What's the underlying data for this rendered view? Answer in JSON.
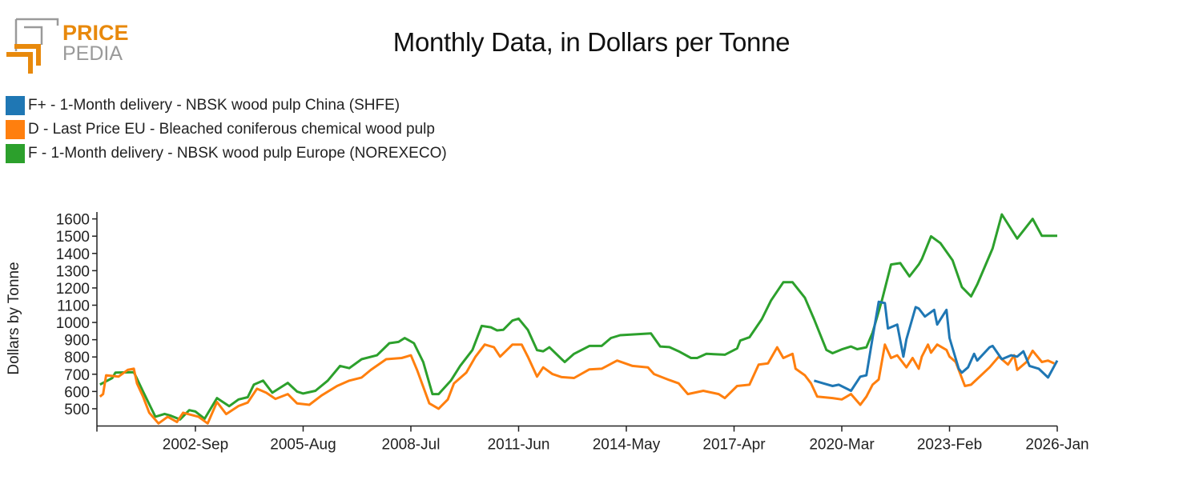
{
  "logo": {
    "text_top": "PRICE",
    "text_bottom": "PEDIA",
    "brand_color": "#e8890c",
    "gray_color": "#9a9a9a"
  },
  "chart_data": {
    "type": "line",
    "title": "Monthly Data, in Dollars per Tonne",
    "xlabel": "",
    "ylabel": "Dollars by Tonne",
    "xlim": [
      "2000-01",
      "2026-01"
    ],
    "ylim": [
      400,
      1640
    ],
    "x_ticks": [
      "2002-Sep",
      "2005-Aug",
      "2008-Jul",
      "2011-Jun",
      "2014-May",
      "2017-Apr",
      "2020-Mar",
      "2023-Feb",
      "2026-Jan"
    ],
    "y_ticks": [
      500,
      600,
      700,
      800,
      900,
      1000,
      1100,
      1200,
      1300,
      1400,
      1500,
      1600
    ],
    "grid": false,
    "legend_position": "top-left",
    "series": [
      {
        "name": "F+ - 1-Month delivery - NBSK wood pulp China (SHFE)",
        "color": "#1f77b4",
        "points": [
          [
            "2019-06",
            663
          ],
          [
            "2019-09",
            647
          ],
          [
            "2019-12",
            632
          ],
          [
            "2020-02",
            639
          ],
          [
            "2020-06",
            604
          ],
          [
            "2020-09",
            686
          ],
          [
            "2020-11",
            694
          ],
          [
            "2021-01",
            910
          ],
          [
            "2021-03",
            1120
          ],
          [
            "2021-05",
            1112
          ],
          [
            "2021-06",
            965
          ],
          [
            "2021-09",
            988
          ],
          [
            "2021-11",
            802
          ],
          [
            "2021-12",
            903
          ],
          [
            "2022-03",
            1089
          ],
          [
            "2022-04",
            1081
          ],
          [
            "2022-06",
            1034
          ],
          [
            "2022-09",
            1073
          ],
          [
            "2022-10",
            988
          ],
          [
            "2023-01",
            1073
          ],
          [
            "2023-02",
            910
          ],
          [
            "2023-05",
            732
          ],
          [
            "2023-06",
            709
          ],
          [
            "2023-08",
            740
          ],
          [
            "2023-10",
            818
          ],
          [
            "2023-11",
            779
          ],
          [
            "2024-03",
            856
          ],
          [
            "2024-04",
            864
          ],
          [
            "2024-07",
            787
          ],
          [
            "2024-10",
            810
          ],
          [
            "2024-12",
            802
          ],
          [
            "2025-02",
            833
          ],
          [
            "2025-04",
            748
          ],
          [
            "2025-07",
            732
          ],
          [
            "2025-10",
            681
          ],
          [
            "2026-01",
            779
          ]
        ]
      },
      {
        "name": "D - Last Price EU - Bleached coniferous chemical wood pulp",
        "color": "#ff7f0e",
        "points": [
          [
            "2000-02",
            570
          ],
          [
            "2000-03",
            585
          ],
          [
            "2000-04",
            694
          ],
          [
            "2000-08",
            686
          ],
          [
            "2000-11",
            725
          ],
          [
            "2001-01",
            732
          ],
          [
            "2001-02",
            647
          ],
          [
            "2001-04",
            570
          ],
          [
            "2001-06",
            477
          ],
          [
            "2001-09",
            415
          ],
          [
            "2001-12",
            454
          ],
          [
            "2002-03",
            423
          ],
          [
            "2002-05",
            477
          ],
          [
            "2002-10",
            454
          ],
          [
            "2003-01",
            415
          ],
          [
            "2003-04",
            539
          ],
          [
            "2003-07",
            469
          ],
          [
            "2003-11",
            516
          ],
          [
            "2004-02",
            536
          ],
          [
            "2004-05",
            616
          ],
          [
            "2004-08",
            593
          ],
          [
            "2004-11",
            557
          ],
          [
            "2005-03",
            585
          ],
          [
            "2005-06",
            531
          ],
          [
            "2005-10",
            523
          ],
          [
            "2006-02",
            577
          ],
          [
            "2006-07",
            632
          ],
          [
            "2006-11",
            663
          ],
          [
            "2007-03",
            681
          ],
          [
            "2007-06",
            725
          ],
          [
            "2007-11",
            787
          ],
          [
            "2008-04",
            794
          ],
          [
            "2008-07",
            810
          ],
          [
            "2008-09",
            725
          ],
          [
            "2009-01",
            531
          ],
          [
            "2009-04",
            500
          ],
          [
            "2009-07",
            554
          ],
          [
            "2009-09",
            647
          ],
          [
            "2010-01",
            709
          ],
          [
            "2010-04",
            802
          ],
          [
            "2010-07",
            872
          ],
          [
            "2010-10",
            856
          ],
          [
            "2010-12",
            802
          ],
          [
            "2011-04",
            872
          ],
          [
            "2011-07",
            872
          ],
          [
            "2011-09",
            802
          ],
          [
            "2011-12",
            686
          ],
          [
            "2012-02",
            740
          ],
          [
            "2012-05",
            701
          ],
          [
            "2012-08",
            683
          ],
          [
            "2012-12",
            678
          ],
          [
            "2013-05",
            728
          ],
          [
            "2013-09",
            732
          ],
          [
            "2014-02",
            779
          ],
          [
            "2014-07",
            748
          ],
          [
            "2014-12",
            740
          ],
          [
            "2015-02",
            701
          ],
          [
            "2015-07",
            666
          ],
          [
            "2015-10",
            647
          ],
          [
            "2016-01",
            585
          ],
          [
            "2016-06",
            604
          ],
          [
            "2016-11",
            585
          ],
          [
            "2017-01",
            562
          ],
          [
            "2017-05",
            632
          ],
          [
            "2017-09",
            639
          ],
          [
            "2017-12",
            756
          ],
          [
            "2018-03",
            763
          ],
          [
            "2018-06",
            856
          ],
          [
            "2018-08",
            794
          ],
          [
            "2018-11",
            818
          ],
          [
            "2018-12",
            732
          ],
          [
            "2019-03",
            694
          ],
          [
            "2019-05",
            647
          ],
          [
            "2019-07",
            570
          ],
          [
            "2019-12",
            562
          ],
          [
            "2020-03",
            554
          ],
          [
            "2020-06",
            585
          ],
          [
            "2020-09",
            523
          ],
          [
            "2020-11",
            570
          ],
          [
            "2021-01",
            639
          ],
          [
            "2021-03",
            670
          ],
          [
            "2021-05",
            872
          ],
          [
            "2021-07",
            794
          ],
          [
            "2021-09",
            810
          ],
          [
            "2021-12",
            740
          ],
          [
            "2022-02",
            794
          ],
          [
            "2022-04",
            732
          ],
          [
            "2022-05",
            802
          ],
          [
            "2022-07",
            872
          ],
          [
            "2022-08",
            825
          ],
          [
            "2022-10",
            872
          ],
          [
            "2023-01",
            841
          ],
          [
            "2023-02",
            802
          ],
          [
            "2023-04",
            771
          ],
          [
            "2023-07",
            632
          ],
          [
            "2023-09",
            639
          ],
          [
            "2024-03",
            740
          ],
          [
            "2024-06",
            802
          ],
          [
            "2024-09",
            756
          ],
          [
            "2024-11",
            810
          ],
          [
            "2024-12",
            725
          ],
          [
            "2025-03",
            771
          ],
          [
            "2025-05",
            836
          ],
          [
            "2025-08",
            771
          ],
          [
            "2025-10",
            779
          ],
          [
            "2025-12",
            763
          ]
        ]
      },
      {
        "name": "F - 1-Month delivery - NBSK wood pulp Europe (NOREXECO)",
        "color": "#2ca02c",
        "points": [
          [
            "2000-02",
            640
          ],
          [
            "2000-06",
            678
          ],
          [
            "2000-07",
            709
          ],
          [
            "2001-01",
            712
          ],
          [
            "2001-04",
            600
          ],
          [
            "2001-08",
            454
          ],
          [
            "2001-11",
            470
          ],
          [
            "2002-01",
            460
          ],
          [
            "2002-04",
            438
          ],
          [
            "2002-07",
            492
          ],
          [
            "2002-09",
            484
          ],
          [
            "2002-12",
            442
          ],
          [
            "2003-04",
            562
          ],
          [
            "2003-08",
            515
          ],
          [
            "2003-11",
            554
          ],
          [
            "2004-02",
            567
          ],
          [
            "2004-04",
            640
          ],
          [
            "2004-07",
            663
          ],
          [
            "2004-10",
            593
          ],
          [
            "2005-03",
            650
          ],
          [
            "2005-06",
            600
          ],
          [
            "2005-08",
            588
          ],
          [
            "2005-12",
            604
          ],
          [
            "2006-04",
            663
          ],
          [
            "2006-08",
            748
          ],
          [
            "2006-11",
            735
          ],
          [
            "2007-03",
            787
          ],
          [
            "2007-08",
            810
          ],
          [
            "2007-12",
            880
          ],
          [
            "2008-03",
            887
          ],
          [
            "2008-05",
            910
          ],
          [
            "2008-08",
            880
          ],
          [
            "2008-11",
            771
          ],
          [
            "2009-02",
            585
          ],
          [
            "2009-04",
            585
          ],
          [
            "2009-08",
            663
          ],
          [
            "2009-11",
            748
          ],
          [
            "2010-03",
            840
          ],
          [
            "2010-06",
            980
          ],
          [
            "2010-09",
            972
          ],
          [
            "2010-11",
            954
          ],
          [
            "2011-01",
            957
          ],
          [
            "2011-04",
            1011
          ],
          [
            "2011-06",
            1022
          ],
          [
            "2011-09",
            957
          ],
          [
            "2011-12",
            840
          ],
          [
            "2012-02",
            833
          ],
          [
            "2012-04",
            856
          ],
          [
            "2012-08",
            787
          ],
          [
            "2012-09",
            771
          ],
          [
            "2012-12",
            818
          ],
          [
            "2013-05",
            864
          ],
          [
            "2013-09",
            864
          ],
          [
            "2013-12",
            910
          ],
          [
            "2014-03",
            926
          ],
          [
            "2015-01",
            937
          ],
          [
            "2015-04",
            861
          ],
          [
            "2015-07",
            857
          ],
          [
            "2015-10",
            833
          ],
          [
            "2016-02",
            794
          ],
          [
            "2016-04",
            794
          ],
          [
            "2016-07",
            818
          ],
          [
            "2017-01",
            813
          ],
          [
            "2017-05",
            849
          ],
          [
            "2017-06",
            895
          ],
          [
            "2017-09",
            914
          ],
          [
            "2018-01",
            1019
          ],
          [
            "2018-04",
            1127
          ],
          [
            "2018-08",
            1233
          ],
          [
            "2018-11",
            1233
          ],
          [
            "2019-03",
            1143
          ],
          [
            "2019-06",
            1019
          ],
          [
            "2019-10",
            841
          ],
          [
            "2019-12",
            822
          ],
          [
            "2020-03",
            844
          ],
          [
            "2020-06",
            861
          ],
          [
            "2020-08",
            845
          ],
          [
            "2020-11",
            856
          ],
          [
            "2021-01",
            941
          ],
          [
            "2021-04",
            1127
          ],
          [
            "2021-07",
            1336
          ],
          [
            "2021-10",
            1344
          ],
          [
            "2022-01",
            1267
          ],
          [
            "2022-04",
            1336
          ],
          [
            "2022-05",
            1367
          ],
          [
            "2022-08",
            1499
          ],
          [
            "2022-11",
            1460
          ],
          [
            "2023-03",
            1360
          ],
          [
            "2023-06",
            1205
          ],
          [
            "2023-09",
            1151
          ],
          [
            "2023-11",
            1220
          ],
          [
            "2024-04",
            1429
          ],
          [
            "2024-07",
            1626
          ],
          [
            "2024-12",
            1486
          ],
          [
            "2025-05",
            1600
          ],
          [
            "2025-08",
            1502
          ],
          [
            "2026-01",
            1502
          ]
        ]
      }
    ]
  }
}
